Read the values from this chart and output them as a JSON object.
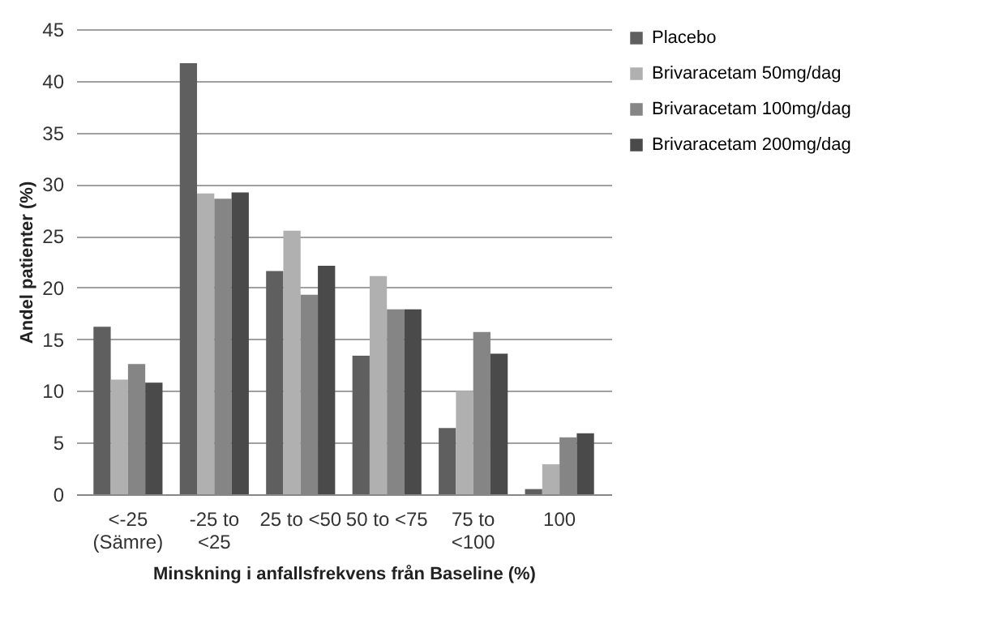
{
  "chart_data": {
    "type": "bar",
    "xlabel": "Minskning  i anfallsfrekvens  från Baseline (%)",
    "ylabel": "Andel patienter (%)",
    "categories": [
      "<-25\n(Sämre)",
      "-25 to\n<25",
      "25 to <50",
      "50 to <75",
      "75 to\n<100",
      "100"
    ],
    "series": [
      {
        "name": "Placebo",
        "color": "#5f5f5f",
        "values": [
          16.2,
          41.7,
          21.6,
          13.4,
          6.4,
          0.5
        ]
      },
      {
        "name": "Brivaracetam 50mg/dag",
        "color": "#b0b0b0",
        "values": [
          11.1,
          29.1,
          25.5,
          21.1,
          10.0,
          2.9
        ]
      },
      {
        "name": "Brivaracetam 100mg/dag",
        "color": "#858585",
        "values": [
          12.6,
          28.6,
          19.3,
          17.9,
          15.7,
          5.5
        ]
      },
      {
        "name": "Brivaracetam 200mg/dag",
        "color": "#4a4a4a",
        "values": [
          10.8,
          29.2,
          22.1,
          17.9,
          13.6,
          5.9
        ]
      }
    ],
    "ylim": [
      0,
      45
    ],
    "yticks": [
      0,
      5,
      10,
      15,
      20,
      25,
      30,
      35,
      40,
      45
    ],
    "grid": "y",
    "legend": "right"
  }
}
